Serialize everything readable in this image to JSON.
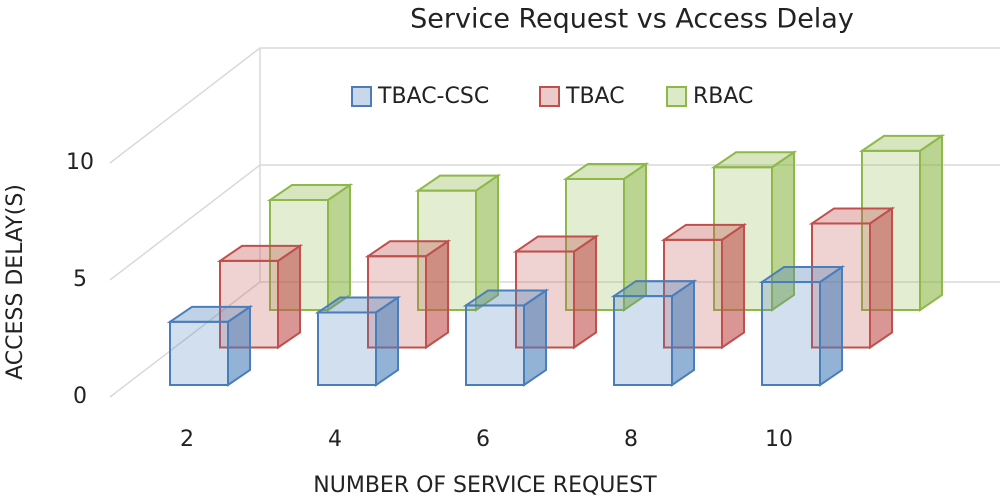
{
  "chart_data": {
    "type": "bar3d",
    "title": "Service  Request  vs Access  Delay",
    "x_label": "NUMBER OF SERVICE REQUEST",
    "y_label": "ACCESS DELAY(S)",
    "categories": [
      "2",
      "4",
      "6",
      "8",
      "10"
    ],
    "series": [
      {
        "name": "TBAC-CSC",
        "color": "#4a7ebb",
        "values": [
          2.7,
          3.1,
          3.4,
          3.8,
          4.4
        ]
      },
      {
        "name": "TBAC",
        "color": "#c0504d",
        "values": [
          3.7,
          3.9,
          4.1,
          4.6,
          5.3
        ]
      },
      {
        "name": "RBAC",
        "color": "#8fb84a",
        "values": [
          4.7,
          5.1,
          5.6,
          6.1,
          6.8
        ]
      }
    ],
    "ylim": [
      0,
      10
    ],
    "yticks": [
      0,
      5,
      10
    ],
    "grid": true,
    "legend": "top"
  }
}
